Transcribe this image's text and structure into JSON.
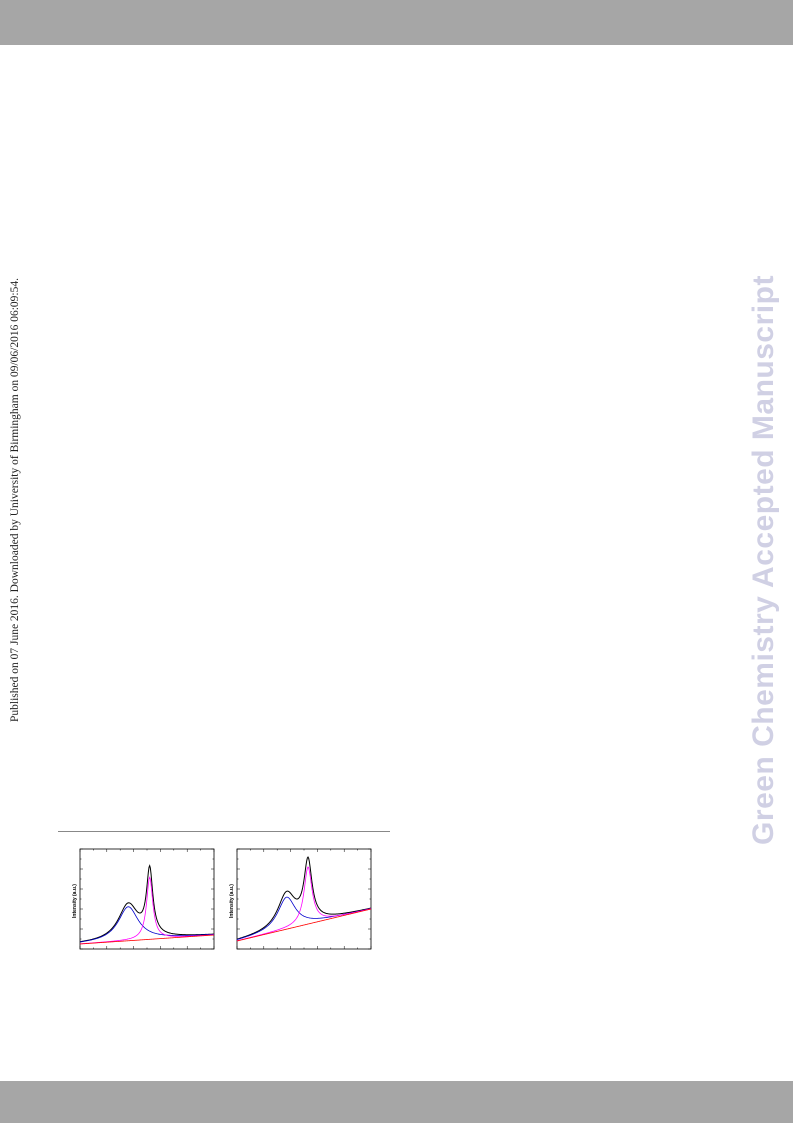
{
  "header": {
    "bar_color": "#a6a6a6"
  },
  "footer": {
    "bar_color": "#a6a6a6"
  },
  "publication_note": "Published on 07 June 2016. Downloaded by University of Birmingham on 09/06/2016 06:09:54.",
  "watermark": "Green Chemistry Accepted Manuscript",
  "chart_data": [
    {
      "type": "line",
      "ylabel": "Intensity (a.u.)",
      "xlim": [
        0,
        100
      ],
      "ylim": [
        0,
        100
      ],
      "series": [
        {
          "color": "#000000",
          "peaks": [
            {
              "c": 36,
              "w": 9,
              "h": 36
            },
            {
              "c": 52,
              "w": 2.8,
              "h": 65
            }
          ],
          "baseline": [
            5,
            14
          ]
        },
        {
          "color": "#0000cc",
          "peaks": [
            {
              "c": 36,
              "w": 9,
              "h": 34
            }
          ],
          "baseline": [
            5,
            14
          ]
        },
        {
          "color": "#ff00ff",
          "peaks": [
            {
              "c": 52,
              "w": 2.8,
              "h": 62
            }
          ],
          "baseline": [
            5,
            14
          ]
        },
        {
          "color": "#ff0000",
          "peaks": [],
          "baseline": [
            5,
            14
          ]
        }
      ]
    },
    {
      "type": "line",
      "ylabel": "Intensity (a.u.)",
      "xlim": [
        0,
        100
      ],
      "ylim": [
        0,
        100
      ],
      "series": [
        {
          "color": "#000000",
          "peaks": [
            {
              "c": 37,
              "w": 8,
              "h": 35
            },
            {
              "c": 53,
              "w": 3.6,
              "h": 60
            }
          ],
          "baseline": [
            8,
            40
          ]
        },
        {
          "color": "#0000cc",
          "peaks": [
            {
              "c": 37,
              "w": 8,
              "h": 32
            }
          ],
          "baseline": [
            8,
            40
          ]
        },
        {
          "color": "#ff00ff",
          "peaks": [
            {
              "c": 53,
              "w": 3.6,
              "h": 57
            }
          ],
          "baseline": [
            8,
            40
          ]
        },
        {
          "color": "#ff0000",
          "peaks": [],
          "baseline": [
            8,
            40
          ]
        }
      ]
    }
  ]
}
